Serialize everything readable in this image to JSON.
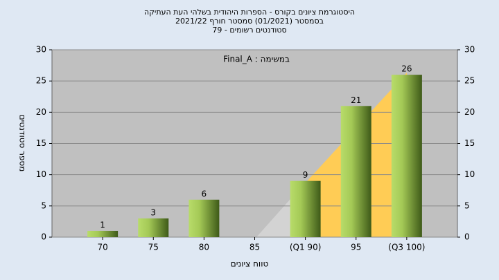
{
  "chart_data": {
    "type": "bar",
    "title": [
      "היסטוגרמת ציונים בקורס - הספרות היהודית בשלהי העת העתיקה",
      "בסמסטר  (01/2021)  סמסטר חורף 2021/22",
      "סטודנטים רשומים - 79"
    ],
    "annotation": "Final_A : במשימה",
    "x_label": "טווח ציונים",
    "y_label": "מספר סטודנטים",
    "categories": [
      "70",
      "75",
      "80",
      "85",
      "(Q1 90)",
      "95",
      "(Q3 100)"
    ],
    "values": [
      1,
      3,
      6,
      0,
      9,
      21,
      26
    ],
    "color": "#8db43a",
    "ylim": [
      0,
      30
    ],
    "yticks": [
      0,
      5,
      10,
      15,
      20,
      25,
      30
    ],
    "y2lim": [
      0,
      30
    ],
    "y2ticks": [
      0,
      5,
      10,
      15,
      20,
      25,
      30
    ],
    "grid": true
  }
}
